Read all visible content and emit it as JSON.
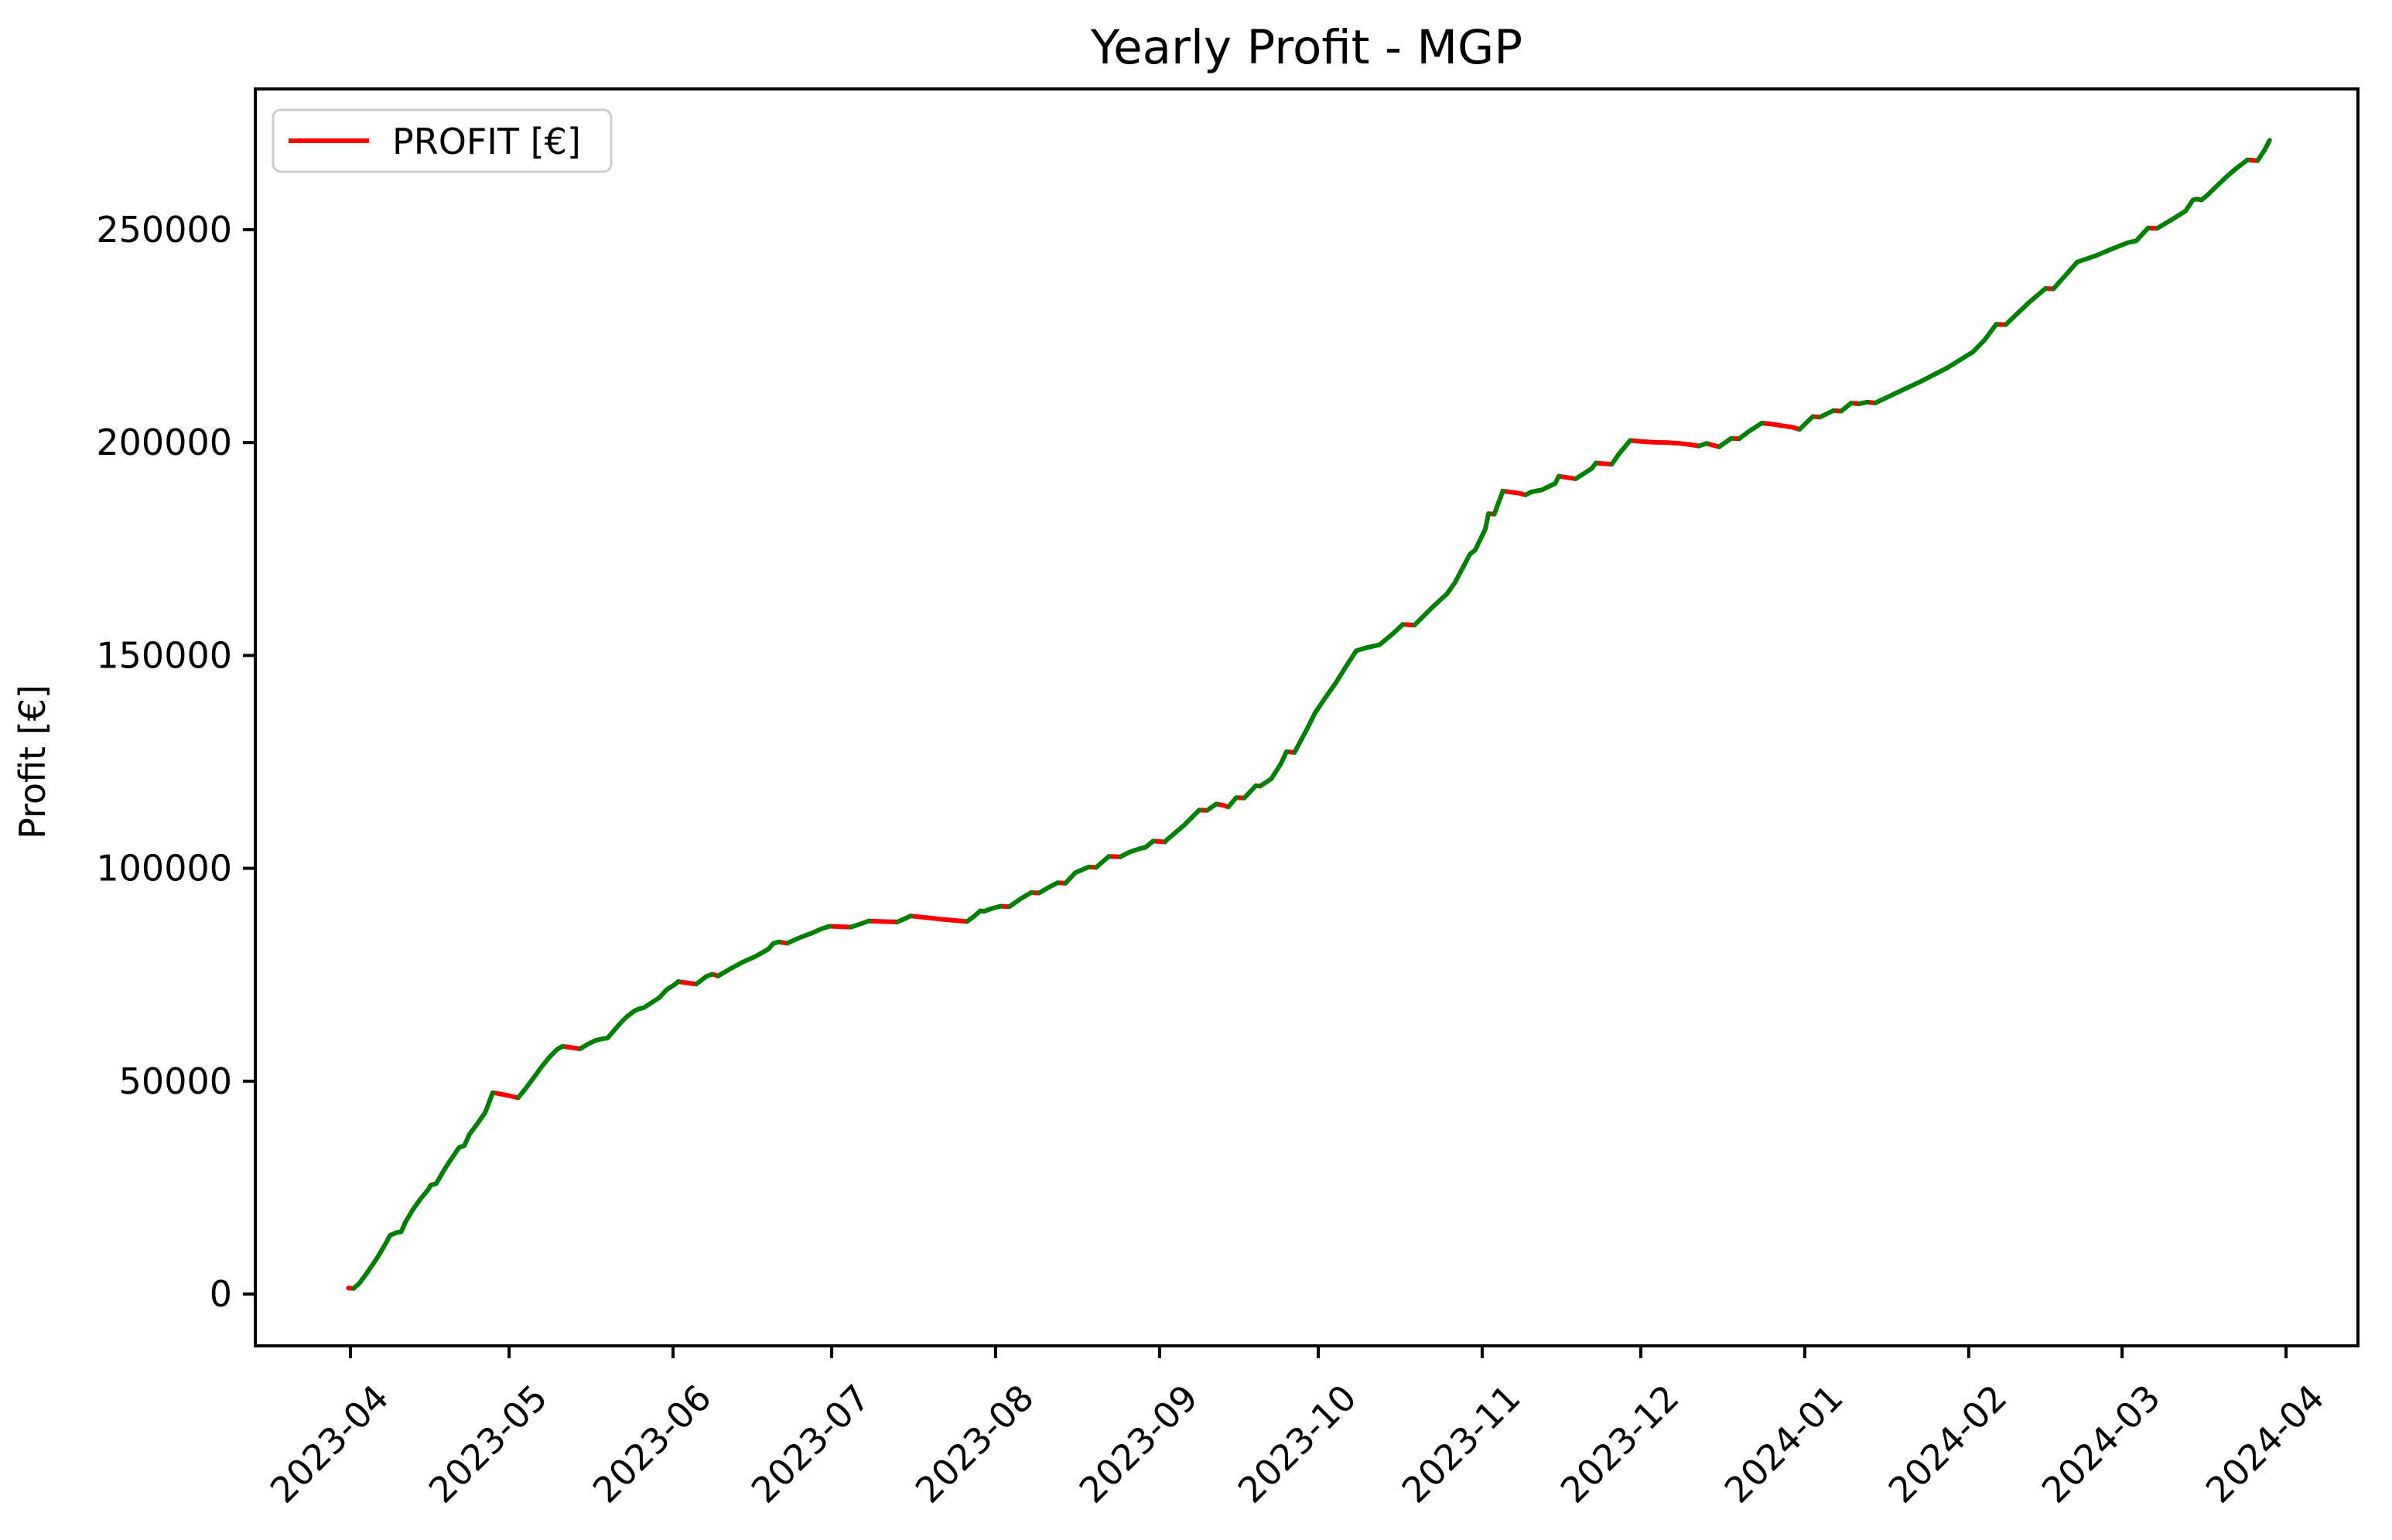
{
  "figure": {
    "background": "#ffffff"
  },
  "chart_data": {
    "type": "line",
    "title": "Yearly Profit - MGP",
    "xlabel": "",
    "ylabel": "Profit [€]",
    "grid": false,
    "legend": {
      "position": "upper left",
      "entries": [
        {
          "label": "PROFIT [€]",
          "color": "#ff0000"
        }
      ]
    },
    "line_colors": {
      "increase": "#008000",
      "decrease": "#ff0000"
    },
    "x_unit": "days since 2023-04-01",
    "xlim_days": [
      -18,
      380
    ],
    "ylim": [
      -12150,
      283050
    ],
    "x_ticks": [
      {
        "label": "2023-04",
        "day": 0
      },
      {
        "label": "2023-05",
        "day": 30
      },
      {
        "label": "2023-06",
        "day": 61
      },
      {
        "label": "2023-07",
        "day": 91
      },
      {
        "label": "2023-08",
        "day": 122
      },
      {
        "label": "2023-09",
        "day": 153
      },
      {
        "label": "2023-10",
        "day": 183
      },
      {
        "label": "2023-11",
        "day": 214
      },
      {
        "label": "2023-12",
        "day": 244
      },
      {
        "label": "2024-01",
        "day": 275
      },
      {
        "label": "2024-02",
        "day": 306
      },
      {
        "label": "2024-03",
        "day": 335
      },
      {
        "label": "2024-04",
        "day": 366
      }
    ],
    "y_ticks": [
      {
        "label": "0",
        "value": 0
      },
      {
        "label": "50000",
        "value": 50000
      },
      {
        "label": "100000",
        "value": 100000
      },
      {
        "label": "150000",
        "value": 150000
      },
      {
        "label": "200000",
        "value": 200000
      },
      {
        "label": "250000",
        "value": 250000
      }
    ],
    "series": [
      {
        "name": "PROFIT [€]",
        "points": [
          [
            -0.4,
            1400
          ],
          [
            0.6,
            1300
          ],
          [
            1.6,
            2400
          ],
          [
            3,
            4700
          ],
          [
            5,
            8400
          ],
          [
            6.5,
            11500
          ],
          [
            7.5,
            13800
          ],
          [
            8.9,
            14500
          ],
          [
            9.6,
            14600
          ],
          [
            10.4,
            16900
          ],
          [
            11.9,
            20000
          ],
          [
            13.3,
            22400
          ],
          [
            14.8,
            24700
          ],
          [
            15.2,
            25600
          ],
          [
            16.2,
            25900
          ],
          [
            17.7,
            29100
          ],
          [
            19.2,
            32000
          ],
          [
            20.6,
            34500
          ],
          [
            21.5,
            34800
          ],
          [
            22.5,
            37500
          ],
          [
            24,
            40000
          ],
          [
            25.5,
            42700
          ],
          [
            26.2,
            45000
          ],
          [
            26.9,
            47300
          ],
          [
            27.4,
            47200
          ],
          [
            29.6,
            46700
          ],
          [
            31.7,
            46100
          ],
          [
            33.2,
            48400
          ],
          [
            34.7,
            50900
          ],
          [
            36.1,
            53300
          ],
          [
            37.6,
            55600
          ],
          [
            39.1,
            57500
          ],
          [
            40.1,
            58200
          ],
          [
            43.4,
            57600
          ],
          [
            44.9,
            58700
          ],
          [
            46.4,
            59600
          ],
          [
            47.8,
            60000
          ],
          [
            48.6,
            60100
          ],
          [
            49.3,
            61100
          ],
          [
            50.8,
            63300
          ],
          [
            52.2,
            65100
          ],
          [
            53.7,
            66500
          ],
          [
            54.6,
            67000
          ],
          [
            55.4,
            67200
          ],
          [
            58.4,
            69600
          ],
          [
            59.8,
            71500
          ],
          [
            61.3,
            72700
          ],
          [
            62,
            73400
          ],
          [
            62.5,
            73300
          ],
          [
            65.4,
            72800
          ],
          [
            67.3,
            74600
          ],
          [
            68.3,
            75100
          ],
          [
            68.8,
            75000
          ],
          [
            69.5,
            74700
          ],
          [
            72,
            76500
          ],
          [
            74.2,
            78000
          ],
          [
            76.4,
            79200
          ],
          [
            79,
            81000
          ],
          [
            80,
            82400
          ],
          [
            81,
            82700
          ],
          [
            82.6,
            82400
          ],
          [
            85.1,
            83800
          ],
          [
            87.3,
            84800
          ],
          [
            89.1,
            85800
          ],
          [
            90.6,
            86400
          ],
          [
            94.6,
            86200
          ],
          [
            96.1,
            86800
          ],
          [
            98,
            87600
          ],
          [
            103.4,
            87400
          ],
          [
            104.9,
            88200
          ],
          [
            105.9,
            88800
          ],
          [
            109,
            88400
          ],
          [
            112,
            88000
          ],
          [
            116.6,
            87500
          ],
          [
            117.8,
            88600
          ],
          [
            119.1,
            90000
          ],
          [
            119.8,
            89900
          ],
          [
            121.4,
            90600
          ],
          [
            122.9,
            91100
          ],
          [
            124.6,
            91000
          ],
          [
            126.8,
            92900
          ],
          [
            128.7,
            94300
          ],
          [
            130.2,
            94200
          ],
          [
            132,
            95500
          ],
          [
            133.7,
            96600
          ],
          [
            135.2,
            96500
          ],
          [
            137.1,
            99000
          ],
          [
            139.6,
            100300
          ],
          [
            141,
            100200
          ],
          [
            143.4,
            102800
          ],
          [
            145.6,
            102700
          ],
          [
            147.3,
            103800
          ],
          [
            149.2,
            104600
          ],
          [
            150.3,
            104900
          ],
          [
            151.8,
            106400
          ],
          [
            154,
            106200
          ],
          [
            154.3,
            106600
          ],
          [
            157.7,
            110200
          ],
          [
            160.5,
            113700
          ],
          [
            162,
            113600
          ],
          [
            163.7,
            115100
          ],
          [
            165,
            114800
          ],
          [
            166,
            114400
          ],
          [
            167.5,
            116600
          ],
          [
            169,
            116500
          ],
          [
            171.2,
            119400
          ],
          [
            172,
            119300
          ],
          [
            174.1,
            121000
          ],
          [
            175.9,
            124500
          ],
          [
            177,
            127400
          ],
          [
            178.5,
            127200
          ],
          [
            181,
            133000
          ],
          [
            182.4,
            136500
          ],
          [
            184.3,
            140000
          ],
          [
            186.4,
            143700
          ],
          [
            188.3,
            147500
          ],
          [
            190.2,
            151100
          ],
          [
            192.4,
            151900
          ],
          [
            194.6,
            152500
          ],
          [
            197.1,
            155100
          ],
          [
            199,
            157300
          ],
          [
            201.2,
            157100
          ],
          [
            204.4,
            161100
          ],
          [
            207.3,
            164400
          ],
          [
            208.8,
            167000
          ],
          [
            210.7,
            171500
          ],
          [
            211.7,
            173800
          ],
          [
            212.7,
            174800
          ],
          [
            214.6,
            179700
          ],
          [
            215.2,
            183300
          ],
          [
            216.3,
            183200
          ],
          [
            217.9,
            188600
          ],
          [
            221,
            188100
          ],
          [
            222.2,
            187700
          ],
          [
            223.3,
            188400
          ],
          [
            225.3,
            188900
          ],
          [
            227.8,
            190400
          ],
          [
            228.5,
            192100
          ],
          [
            231.7,
            191500
          ],
          [
            234.7,
            193900
          ],
          [
            235.5,
            195200
          ],
          [
            238.5,
            194900
          ],
          [
            239.9,
            197400
          ],
          [
            242,
            200500
          ],
          [
            243.5,
            200300
          ],
          [
            246,
            200100
          ],
          [
            249,
            200000
          ],
          [
            251.5,
            199800
          ],
          [
            253.5,
            199500
          ],
          [
            255,
            199200
          ],
          [
            256.4,
            199800
          ],
          [
            258.8,
            199000
          ],
          [
            261.1,
            201000
          ],
          [
            262.6,
            200900
          ],
          [
            264.4,
            202600
          ],
          [
            266.9,
            204600
          ],
          [
            269,
            204300
          ],
          [
            271,
            203900
          ],
          [
            272.7,
            203600
          ],
          [
            274,
            203100
          ],
          [
            276.5,
            206100
          ],
          [
            277.9,
            206000
          ],
          [
            280.4,
            207500
          ],
          [
            281.9,
            207400
          ],
          [
            283.8,
            209300
          ],
          [
            285.3,
            209100
          ],
          [
            286.8,
            209500
          ],
          [
            288.3,
            209300
          ],
          [
            292.2,
            211600
          ],
          [
            297,
            214400
          ],
          [
            302,
            217600
          ],
          [
            306.8,
            221300
          ],
          [
            309,
            224100
          ],
          [
            311.2,
            227800
          ],
          [
            313,
            227700
          ],
          [
            317.3,
            232800
          ],
          [
            320.5,
            236200
          ],
          [
            322,
            236100
          ],
          [
            324.1,
            239000
          ],
          [
            326.5,
            242400
          ],
          [
            330,
            243900
          ],
          [
            333.3,
            245600
          ],
          [
            336.2,
            247000
          ],
          [
            337.7,
            247400
          ],
          [
            339.9,
            250400
          ],
          [
            341.6,
            250300
          ],
          [
            344.3,
            252300
          ],
          [
            347,
            254400
          ],
          [
            348.4,
            257000
          ],
          [
            349.2,
            257200
          ],
          [
            350,
            257000
          ],
          [
            351,
            258000
          ],
          [
            354.9,
            262600
          ],
          [
            356.8,
            264600
          ],
          [
            358.7,
            266400
          ],
          [
            360.6,
            266200
          ],
          [
            361.9,
            268600
          ],
          [
            362.9,
            271000
          ]
        ]
      }
    ]
  }
}
